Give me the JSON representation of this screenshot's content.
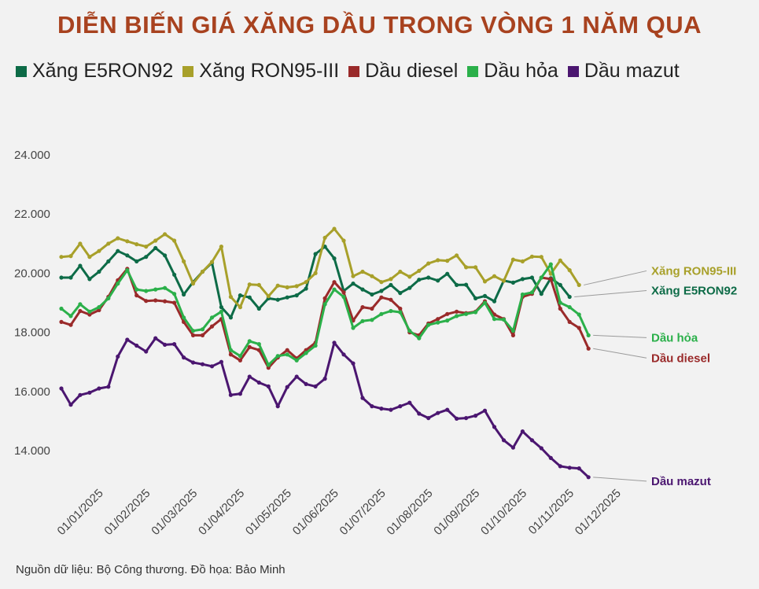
{
  "title": "DIỄN BIẾN GIÁ XĂNG DẦU TRONG VÒNG 1 NĂM QUA",
  "title_color": "#a8421f",
  "source": "Nguồn dữ liệu: Bộ Công thương. Đồ họa: Bảo Minh",
  "chart_data": {
    "type": "line",
    "title": "DIỄN BIẾN GIÁ XĂNG DẦU TRONG VÒNG 1 NĂM QUA",
    "xlabel": "",
    "ylabel": "",
    "ylim": [
      12500,
      24500
    ],
    "yticks": [
      14000,
      16000,
      18000,
      20000,
      22000,
      24000
    ],
    "ytick_labels": [
      "14.000",
      "16.000",
      "18.000",
      "20.000",
      "22.000",
      "24.000"
    ],
    "xticks": [
      {
        "pos": 4,
        "label": "01/01/2025"
      },
      {
        "pos": 9,
        "label": "01/02/2025"
      },
      {
        "pos": 14,
        "label": "01/03/2025"
      },
      {
        "pos": 19,
        "label": "01/04/2025"
      },
      {
        "pos": 24,
        "label": "01/05/2025"
      },
      {
        "pos": 29,
        "label": "01/06/2025"
      },
      {
        "pos": 34,
        "label": "01/07/2025"
      },
      {
        "pos": 39,
        "label": "01/08/2025"
      },
      {
        "pos": 44,
        "label": "01/09/2025"
      },
      {
        "pos": 49,
        "label": "01/10/2025"
      },
      {
        "pos": 54,
        "label": "01/11/2025"
      },
      {
        "pos": 59,
        "label": "01/12/2025"
      }
    ],
    "x_count": 62,
    "grid": false,
    "legend_position": "top",
    "series": [
      {
        "name": "Xăng E5RON92",
        "end_label": "Xăng E5RON92",
        "color": "#0d6b47",
        "values": [
          19850,
          19850,
          20250,
          19800,
          20050,
          20400,
          20750,
          20600,
          20400,
          20550,
          20850,
          20600,
          19950,
          19280,
          19700,
          20050,
          20350,
          18850,
          18500,
          19250,
          19180,
          18800,
          19150,
          19100,
          19180,
          19250,
          19480,
          20650,
          20900,
          20500,
          19400,
          19650,
          19450,
          19280,
          19400,
          19600,
          19330,
          19500,
          19780,
          19850,
          19750,
          19980,
          19600,
          19610,
          19150,
          19230,
          19050,
          19750,
          19680,
          19800,
          19850,
          19300,
          19830,
          19600,
          19200
        ]
      },
      {
        "name": "Xăng RON95-III",
        "end_label": "Xăng RON95-III",
        "color": "#a8a02a",
        "values": [
          20550,
          20580,
          21000,
          20550,
          20750,
          21000,
          21180,
          21080,
          20980,
          20900,
          21100,
          21320,
          21100,
          20400,
          19650,
          20050,
          20380,
          20900,
          19200,
          18850,
          19620,
          19600,
          19220,
          19580,
          19520,
          19560,
          19700,
          20000,
          21200,
          21500,
          21100,
          19900,
          20050,
          19900,
          19700,
          19800,
          20050,
          19880,
          20080,
          20330,
          20440,
          20420,
          20600,
          20200,
          20200,
          19720,
          19900,
          19740,
          20460,
          20400,
          20560,
          20550,
          19980,
          20430,
          20100,
          19600
        ]
      },
      {
        "name": "Dầu diesel",
        "end_label": "Dầu diesel",
        "color": "#9a2a2a",
        "values": [
          18350,
          18250,
          18720,
          18600,
          18750,
          19200,
          19760,
          20150,
          19250,
          19060,
          19080,
          19050,
          19000,
          18350,
          17900,
          17900,
          18200,
          18450,
          17250,
          17050,
          17500,
          17400,
          16800,
          17150,
          17400,
          17120,
          17400,
          17650,
          19150,
          19700,
          19350,
          18400,
          18850,
          18800,
          19180,
          19100,
          18800,
          18000,
          17900,
          18300,
          18450,
          18620,
          18700,
          18650,
          18700,
          19050,
          18600,
          18450,
          17900,
          19200,
          19300,
          19850,
          19800,
          18800,
          18350,
          18150,
          17450
        ]
      },
      {
        "name": "Dầu hỏa",
        "end_label": "Dầu hỏa",
        "color": "#2bb04a",
        "values": [
          18800,
          18550,
          18950,
          18700,
          18850,
          19150,
          19650,
          20100,
          19450,
          19400,
          19450,
          19500,
          19300,
          18500,
          18050,
          18100,
          18500,
          18700,
          17400,
          17200,
          17700,
          17600,
          16900,
          17200,
          17250,
          17050,
          17300,
          17550,
          18950,
          19450,
          19200,
          18150,
          18380,
          18420,
          18620,
          18720,
          18680,
          18050,
          17800,
          18250,
          18330,
          18400,
          18550,
          18620,
          18680,
          19000,
          18450,
          18430,
          18050,
          19280,
          19350,
          19850,
          20300,
          19000,
          18850,
          18600,
          17900
        ]
      },
      {
        "name": "Dầu mazut",
        "end_label": "Dầu mazut",
        "color": "#4b1670",
        "values": [
          16100,
          15550,
          15880,
          15960,
          16100,
          16160,
          17180,
          17750,
          17550,
          17350,
          17800,
          17580,
          17600,
          17150,
          16980,
          16920,
          16850,
          17000,
          15880,
          15920,
          16500,
          16300,
          16170,
          15500,
          16150,
          16500,
          16250,
          16170,
          16430,
          17650,
          17250,
          16950,
          15780,
          15500,
          15420,
          15380,
          15500,
          15620,
          15250,
          15100,
          15270,
          15380,
          15080,
          15100,
          15180,
          15350,
          14800,
          14350,
          14100,
          14650,
          14350,
          14080,
          13750,
          13470,
          13420,
          13400,
          13100
        ]
      }
    ]
  },
  "legend": [
    {
      "label": "Xăng E5RON92",
      "color": "#0d6b47"
    },
    {
      "label": "Xăng RON95-III",
      "color": "#a8a02a"
    },
    {
      "label": "Dầu diesel",
      "color": "#9a2a2a"
    },
    {
      "label": "Dầu hỏa",
      "color": "#2bb04a"
    },
    {
      "label": "Dầu mazut",
      "color": "#4b1670"
    }
  ]
}
